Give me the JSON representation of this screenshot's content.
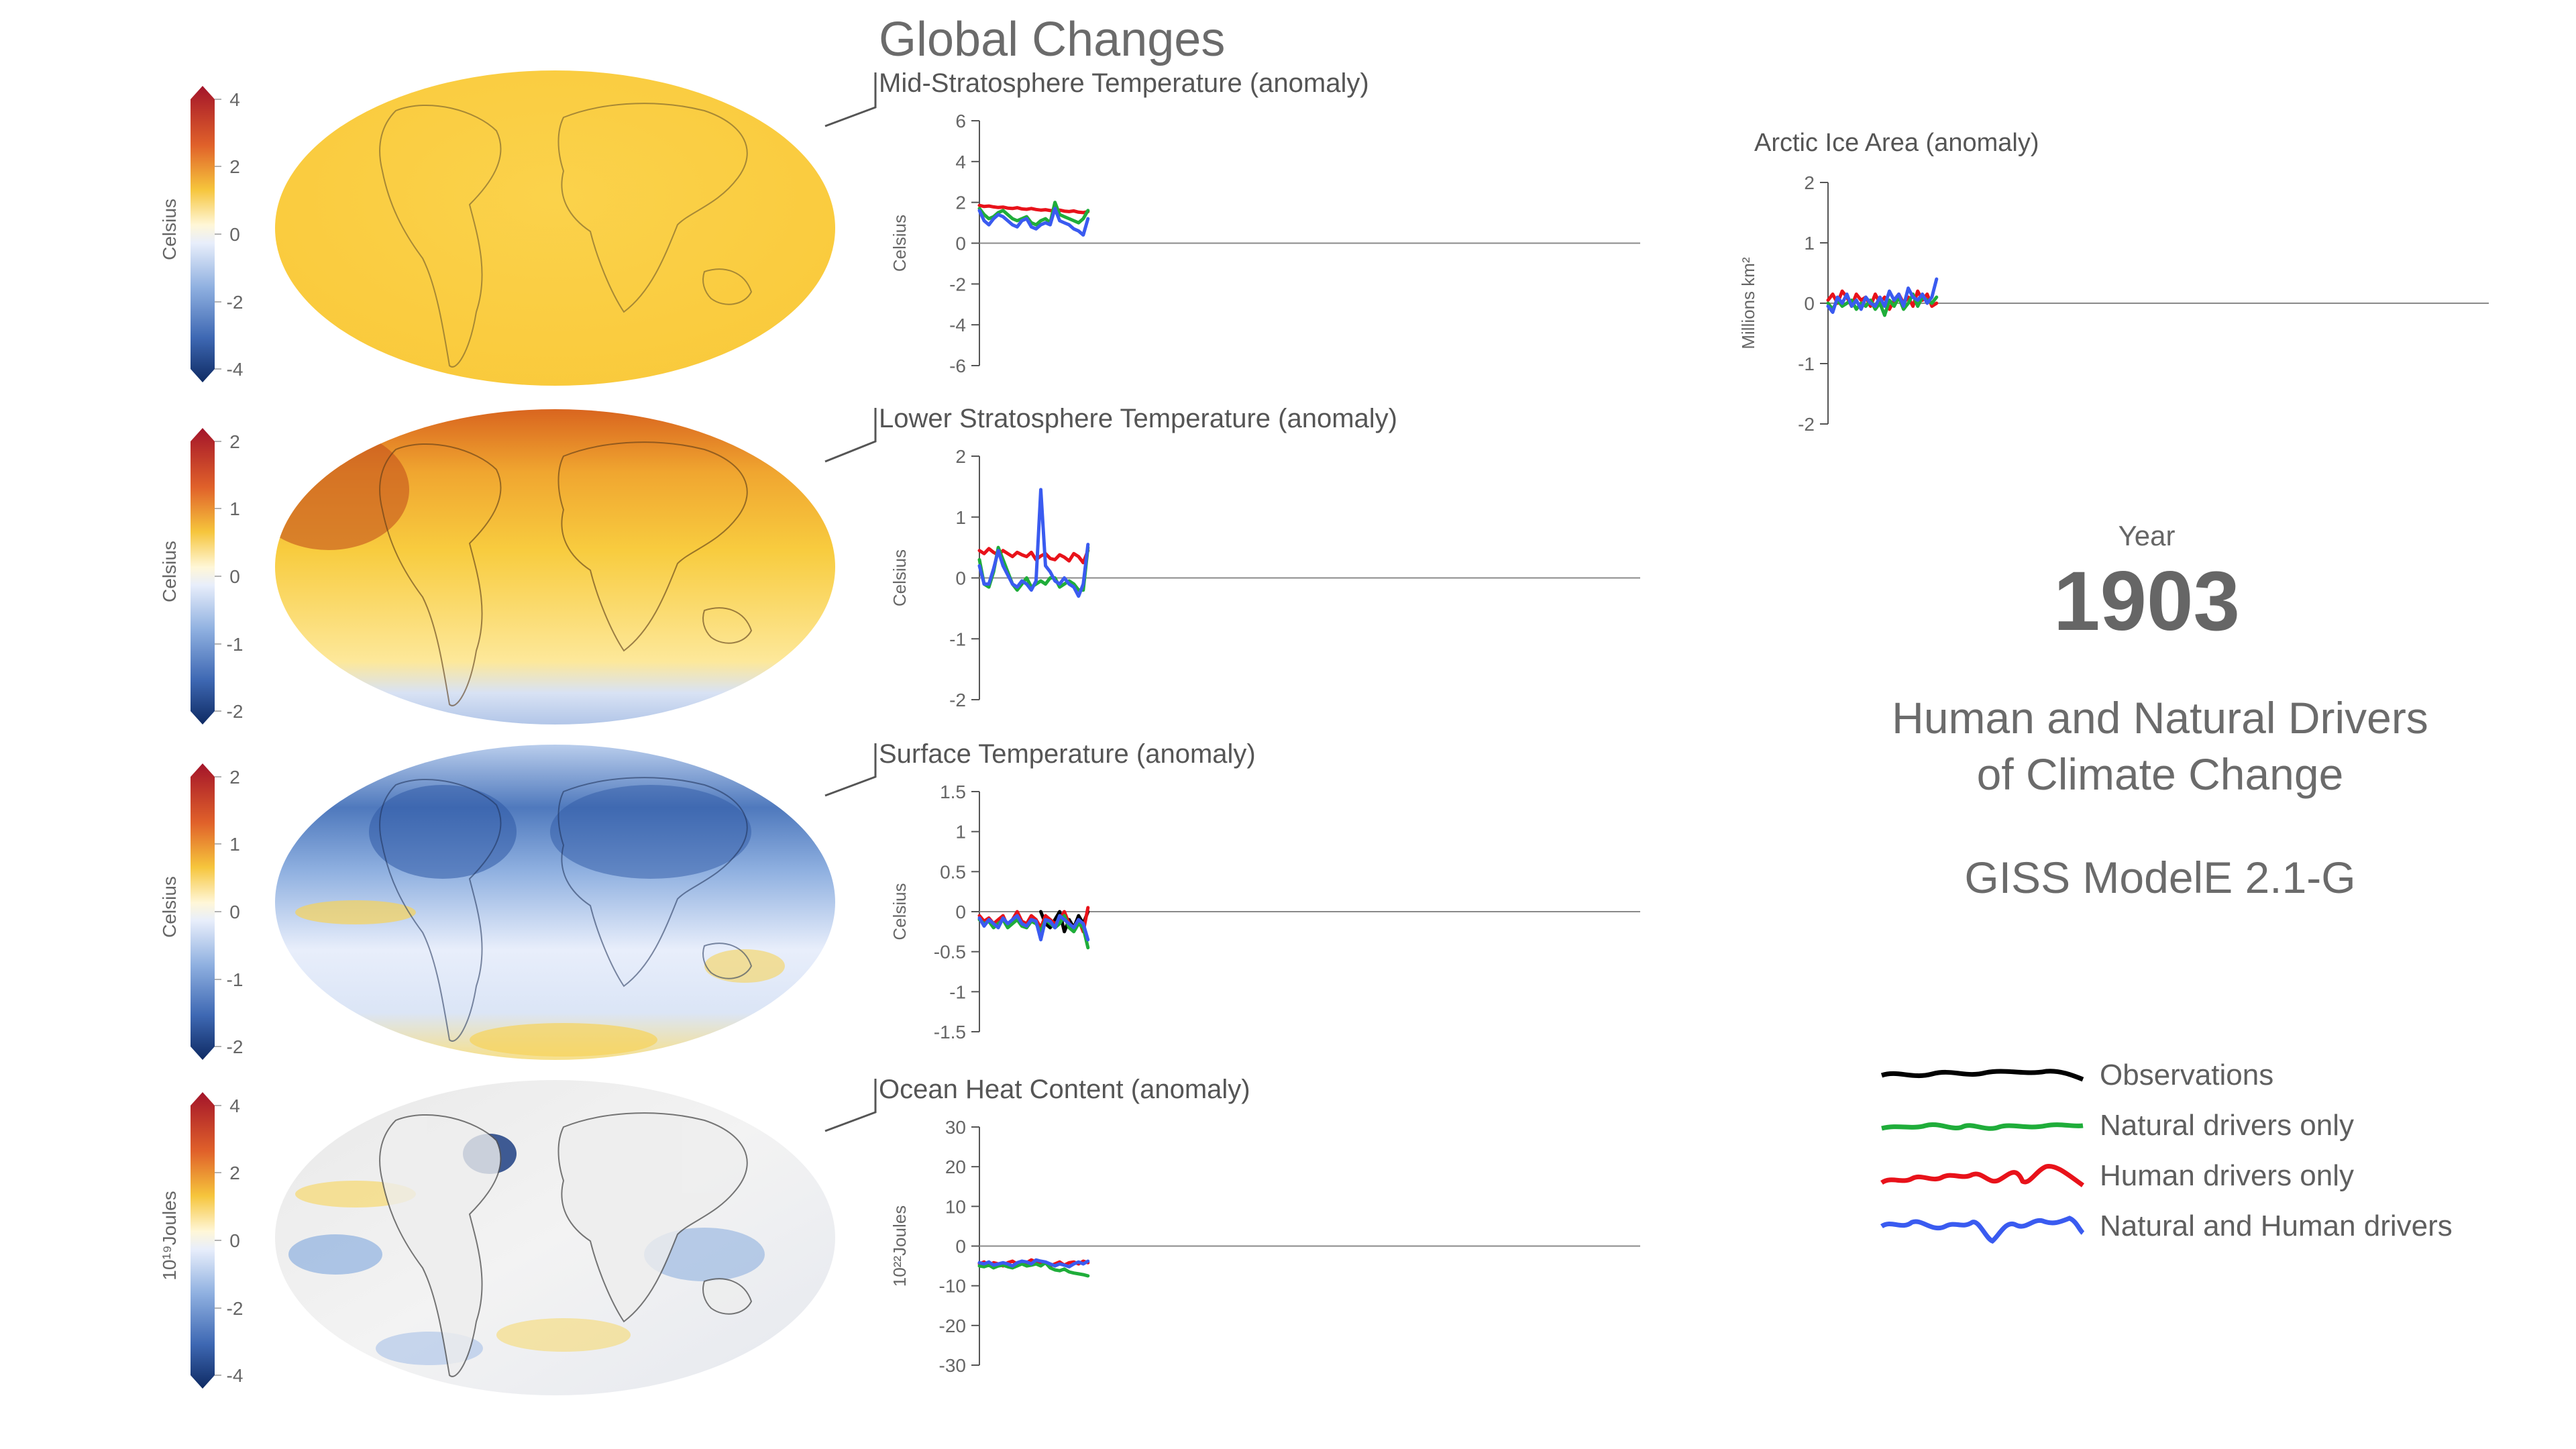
{
  "page_title": "Global Changes",
  "year_label": "Year",
  "year_value": "1903",
  "info_title_line1": "Human and Natural Drivers",
  "info_title_line2": "of Climate Change",
  "model_name": "GISS ModelE 2.1-G",
  "colors": {
    "observations": "#000000",
    "natural": "#1fad3a",
    "human": "#e8121a",
    "natural_human": "#3a5bf0",
    "axis": "#555555",
    "zero_line": "#8a8a8a"
  },
  "legend": [
    {
      "label": "Observations",
      "color": "#000000"
    },
    {
      "label": "Natural drivers only",
      "color": "#1fad3a"
    },
    {
      "label": "Human drivers only",
      "color": "#e8121a"
    },
    {
      "label": "Natural and Human drivers",
      "color": "#3a5bf0"
    }
  ],
  "colorbars": [
    {
      "label": "Celsius",
      "ticks": [
        "4",
        "2",
        "0",
        "-2",
        "-4"
      ],
      "map_tone": "warm"
    },
    {
      "label": "Celsius",
      "ticks": [
        "2",
        "1",
        "0",
        "-1",
        "-2"
      ],
      "map_tone": "hot"
    },
    {
      "label": "Celsius",
      "ticks": [
        "2",
        "1",
        "0",
        "-1",
        "-2"
      ],
      "map_tone": "cool"
    },
    {
      "label": "10¹⁹Joules",
      "ticks": [
        "4",
        "2",
        "0",
        "-2",
        "-4"
      ],
      "map_tone": "neutral"
    }
  ],
  "chart_data": [
    {
      "type": "line",
      "title": "Mid-Stratosphere Temperature (anomaly)",
      "ylabel": "Celsius",
      "ylim": [
        -6,
        6
      ],
      "yticks": [
        "6",
        "4",
        "2",
        "0",
        "-2",
        "-4",
        "-6"
      ],
      "ytick_values": [
        6,
        4,
        2,
        0,
        -2,
        -4,
        -6
      ],
      "xlim": [
        1880,
        2020
      ],
      "x_start": 1880,
      "x_end": 1903,
      "series": [
        {
          "key": "human",
          "values": [
            1.85,
            1.8,
            1.82,
            1.78,
            1.75,
            1.77,
            1.72,
            1.7,
            1.74,
            1.68,
            1.66,
            1.7,
            1.65,
            1.62,
            1.64,
            1.6,
            1.58,
            1.62,
            1.57,
            1.55,
            1.58,
            1.52,
            1.5,
            1.55
          ]
        },
        {
          "key": "natural",
          "values": [
            1.7,
            1.4,
            1.2,
            1.3,
            1.5,
            1.6,
            1.4,
            1.2,
            1.1,
            1.2,
            1.3,
            1.0,
            0.9,
            1.1,
            1.2,
            1.0,
            2.0,
            1.4,
            1.3,
            1.2,
            1.1,
            1.0,
            1.2,
            1.6
          ]
        },
        {
          "key": "natural_human",
          "values": [
            1.6,
            1.1,
            0.9,
            1.2,
            1.4,
            1.3,
            1.1,
            0.9,
            0.8,
            1.1,
            1.2,
            0.8,
            0.7,
            0.9,
            1.0,
            0.9,
            1.7,
            1.1,
            1.0,
            0.9,
            0.7,
            0.6,
            0.4,
            1.2
          ]
        }
      ]
    },
    {
      "type": "line",
      "title": "Lower Stratosphere Temperature (anomaly)",
      "ylabel": "Celsius",
      "ylim": [
        -2,
        2
      ],
      "yticks": [
        "2",
        "1",
        "0",
        "-1",
        "-2"
      ],
      "ytick_values": [
        2,
        1,
        0,
        -1,
        -2
      ],
      "xlim": [
        1880,
        2020
      ],
      "x_start": 1880,
      "x_end": 1903,
      "series": [
        {
          "key": "human",
          "values": [
            0.45,
            0.4,
            0.48,
            0.42,
            0.38,
            0.45,
            0.4,
            0.35,
            0.42,
            0.38,
            0.35,
            0.42,
            0.3,
            0.36,
            0.4,
            0.32,
            0.3,
            0.38,
            0.34,
            0.28,
            0.4,
            0.35,
            0.25,
            0.45
          ]
        },
        {
          "key": "natural",
          "values": [
            0.3,
            -0.1,
            -0.15,
            0.1,
            0.5,
            0.3,
            0.1,
            -0.1,
            -0.2,
            -0.1,
            0.0,
            -0.15,
            -0.1,
            -0.05,
            -0.1,
            0.0,
            0.0,
            -0.15,
            -0.1,
            -0.05,
            -0.1,
            -0.2,
            -0.2,
            0.5
          ]
        },
        {
          "key": "natural_human",
          "values": [
            0.2,
            -0.1,
            -0.1,
            0.15,
            0.45,
            0.2,
            0.05,
            -0.1,
            -0.15,
            -0.05,
            -0.1,
            -0.2,
            -0.05,
            1.45,
            0.2,
            0.1,
            -0.05,
            -0.1,
            0.0,
            -0.1,
            -0.15,
            -0.3,
            -0.1,
            0.55
          ]
        }
      ]
    },
    {
      "type": "line",
      "title": "Surface Temperature (anomaly)",
      "ylabel": "Celsius",
      "ylim": [
        -1.5,
        1.5
      ],
      "yticks": [
        "1.5",
        "1",
        "0.5",
        "0",
        "-0.5",
        "-1",
        "-1.5"
      ],
      "ytick_values": [
        1.5,
        1,
        0.5,
        0,
        -0.5,
        -1,
        -1.5
      ],
      "xlim": [
        1880,
        2020
      ],
      "x_start": 1880,
      "x_end": 1903,
      "series": [
        {
          "key": "observations",
          "x_start": 1893,
          "values": [
            0.0,
            -0.15,
            -0.2,
            -0.1,
            0.0,
            -0.25,
            -0.1,
            -0.2,
            -0.05,
            -0.15,
            0.0
          ]
        },
        {
          "key": "human",
          "values": [
            -0.05,
            -0.12,
            -0.08,
            -0.15,
            -0.1,
            -0.05,
            -0.18,
            -0.1,
            0.0,
            -0.12,
            -0.15,
            -0.05,
            -0.1,
            -0.2,
            -0.05,
            -0.1,
            -0.15,
            -0.1,
            0.0,
            -0.15,
            -0.2,
            -0.1,
            -0.25,
            0.05
          ]
        },
        {
          "key": "natural",
          "values": [
            -0.1,
            -0.15,
            -0.12,
            -0.2,
            -0.15,
            -0.1,
            -0.2,
            -0.15,
            -0.1,
            -0.18,
            -0.2,
            -0.12,
            -0.15,
            -0.25,
            -0.1,
            -0.15,
            -0.2,
            -0.15,
            -0.05,
            -0.2,
            -0.25,
            -0.15,
            -0.2,
            -0.45
          ]
        },
        {
          "key": "natural_human",
          "values": [
            -0.08,
            -0.18,
            -0.1,
            -0.15,
            -0.2,
            -0.08,
            -0.15,
            -0.1,
            -0.05,
            -0.15,
            -0.18,
            -0.1,
            -0.12,
            -0.35,
            -0.1,
            -0.12,
            -0.2,
            -0.05,
            -0.1,
            -0.15,
            -0.2,
            -0.1,
            -0.15,
            -0.35
          ]
        }
      ]
    },
    {
      "type": "line",
      "title": "Ocean Heat Content (anomaly)",
      "ylabel": "10²²Joules",
      "ylim": [
        -30,
        30
      ],
      "yticks": [
        "30",
        "20",
        "10",
        "0",
        "-10",
        "-20",
        "-30"
      ],
      "ytick_values": [
        30,
        20,
        10,
        0,
        -10,
        -20,
        -30
      ],
      "xlim": [
        1880,
        2020
      ],
      "x_start": 1880,
      "x_end": 1903,
      "series": [
        {
          "key": "human",
          "values": [
            -4.5,
            -4.0,
            -4.8,
            -4.2,
            -4.5,
            -5.0,
            -4.2,
            -3.8,
            -4.5,
            -4.0,
            -4.2,
            -3.5,
            -4.0,
            -4.5,
            -4.2,
            -5.0,
            -4.5,
            -4.0,
            -4.8,
            -4.2,
            -4.0,
            -4.5,
            -3.8,
            -4.2
          ]
        },
        {
          "key": "natural",
          "values": [
            -5.0,
            -5.2,
            -4.8,
            -5.5,
            -5.0,
            -4.8,
            -5.2,
            -5.5,
            -5.0,
            -4.5,
            -5.0,
            -4.8,
            -4.5,
            -5.0,
            -4.2,
            -5.5,
            -6.0,
            -6.2,
            -5.8,
            -6.5,
            -6.8,
            -7.0,
            -7.2,
            -7.5
          ]
        },
        {
          "key": "natural_human",
          "values": [
            -4.2,
            -4.5,
            -4.0,
            -4.8,
            -4.5,
            -4.2,
            -4.5,
            -5.0,
            -4.2,
            -3.8,
            -4.0,
            -4.5,
            -3.5,
            -3.8,
            -4.0,
            -4.5,
            -5.0,
            -4.5,
            -4.8,
            -5.2,
            -4.5,
            -4.0,
            -4.5,
            -3.8
          ]
        }
      ]
    },
    {
      "type": "line",
      "title": "Arctic Ice Area (anomaly)",
      "ylabel": "Millions km²",
      "ylim": [
        -2,
        2
      ],
      "yticks": [
        "2",
        "1",
        "0",
        "-1",
        "-2"
      ],
      "ytick_values": [
        2,
        1,
        0,
        -1,
        -2
      ],
      "xlim": [
        1880,
        2020
      ],
      "x_start": 1880,
      "x_end": 1903,
      "series": [
        {
          "key": "human",
          "values": [
            0.05,
            0.15,
            0.0,
            0.2,
            0.1,
            -0.05,
            0.15,
            0.05,
            0.1,
            -0.05,
            0.15,
            0.0,
            0.1,
            -0.1,
            0.05,
            0.15,
            0.0,
            0.1,
            -0.05,
            0.2,
            0.05,
            0.15,
            -0.05,
            0.0
          ]
        },
        {
          "key": "natural",
          "values": [
            0.0,
            -0.1,
            0.05,
            -0.05,
            0.0,
            0.05,
            -0.1,
            0.0,
            -0.05,
            0.05,
            -0.1,
            0.0,
            -0.2,
            0.05,
            -0.05,
            0.1,
            -0.1,
            0.0,
            0.15,
            -0.05,
            0.1,
            0.05,
            0.0,
            0.1
          ]
        },
        {
          "key": "natural_human",
          "values": [
            -0.05,
            -0.15,
            0.1,
            0.0,
            0.15,
            -0.05,
            0.05,
            -0.1,
            0.1,
            0.0,
            -0.05,
            0.1,
            -0.05,
            0.2,
            0.05,
            0.15,
            -0.05,
            0.25,
            0.1,
            0.05,
            0.15,
            0.0,
            0.1,
            0.4
          ]
        }
      ]
    }
  ]
}
